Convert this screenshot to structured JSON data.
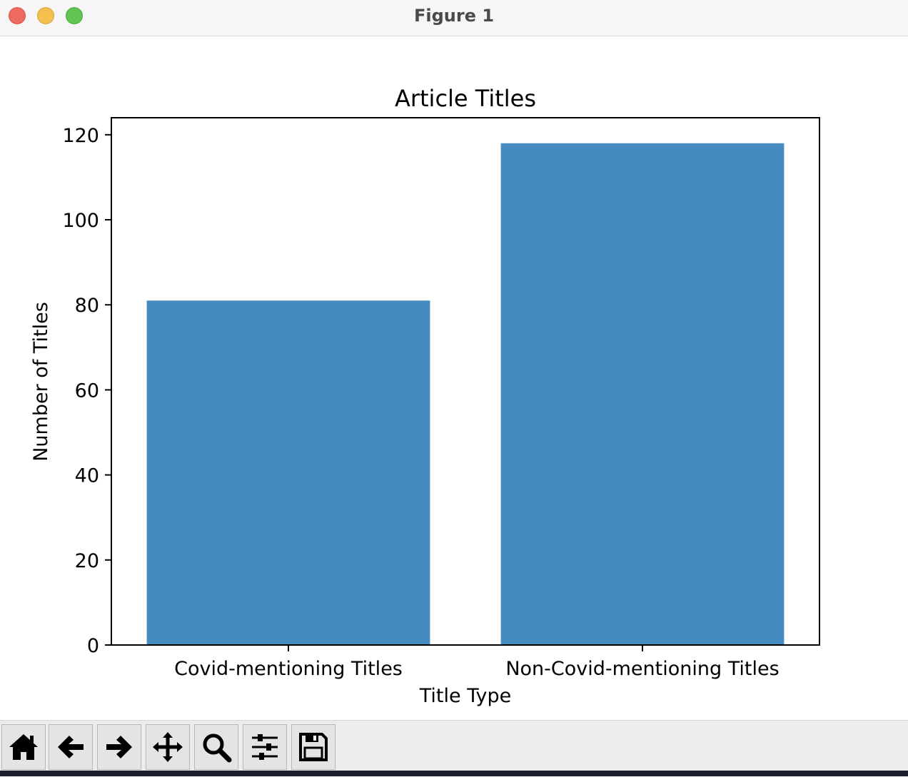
{
  "window": {
    "title": "Figure 1"
  },
  "toolbar": {
    "buttons": [
      {
        "name": "home-button",
        "icon": "home-icon"
      },
      {
        "name": "back-button",
        "icon": "arrow-left-icon"
      },
      {
        "name": "forward-button",
        "icon": "arrow-right-icon"
      },
      {
        "name": "pan-button",
        "icon": "move-icon"
      },
      {
        "name": "zoom-button",
        "icon": "magnifier-icon"
      },
      {
        "name": "configure-subplots-button",
        "icon": "sliders-icon"
      },
      {
        "name": "save-button",
        "icon": "floppy-disk-icon"
      }
    ]
  },
  "colors": {
    "bar": "#448bbf",
    "axis": "#000000"
  },
  "chart_data": {
    "type": "bar",
    "title": "Article Titles",
    "xlabel": "Title Type",
    "ylabel": "Number of Titles",
    "categories": [
      "Covid-mentioning Titles",
      "Non-Covid-mentioning Titles"
    ],
    "values": [
      81,
      118
    ],
    "ylim": [
      0,
      124
    ],
    "yticks": [
      0,
      20,
      40,
      60,
      80,
      100,
      120
    ],
    "grid": false,
    "legend": "none"
  }
}
